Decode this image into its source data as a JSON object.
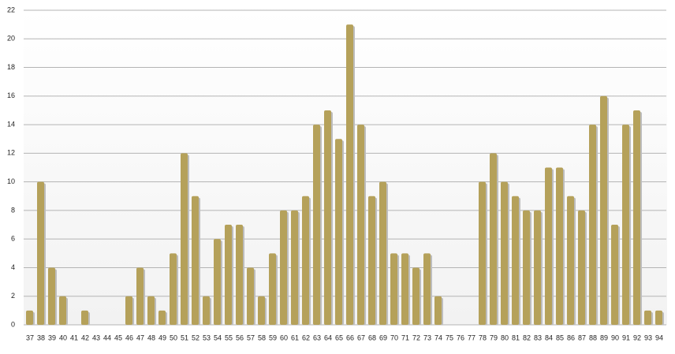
{
  "chart_data": {
    "type": "bar",
    "categories": [
      "37",
      "38",
      "39",
      "40",
      "41",
      "42",
      "43",
      "44",
      "45",
      "46",
      "47",
      "48",
      "49",
      "50",
      "51",
      "52",
      "53",
      "54",
      "55",
      "56",
      "57",
      "58",
      "59",
      "60",
      "61",
      "62",
      "63",
      "64",
      "65",
      "66",
      "67",
      "68",
      "69",
      "70",
      "71",
      "72",
      "73",
      "74",
      "75",
      "76",
      "77",
      "78",
      "79",
      "80",
      "81",
      "82",
      "83",
      "84",
      "85",
      "86",
      "87",
      "88",
      "89",
      "90",
      "91",
      "92",
      "93",
      "94"
    ],
    "values": [
      1,
      10,
      4,
      2,
      0,
      1,
      0,
      0,
      0,
      2,
      4,
      2,
      1,
      5,
      12,
      9,
      2,
      6,
      7,
      7,
      4,
      2,
      5,
      8,
      8,
      9,
      14,
      15,
      13,
      21,
      14,
      9,
      10,
      5,
      5,
      4,
      5,
      2,
      0,
      0,
      0,
      10,
      12,
      10,
      9,
      8,
      8,
      11,
      11,
      9,
      8,
      14,
      16,
      7,
      14,
      15,
      1,
      1
    ],
    "color": "#b5a15a",
    "ylim": [
      0,
      22
    ],
    "yticks": [
      0,
      2,
      4,
      6,
      8,
      10,
      12,
      14,
      16,
      18,
      20,
      22
    ],
    "grid": true
  }
}
